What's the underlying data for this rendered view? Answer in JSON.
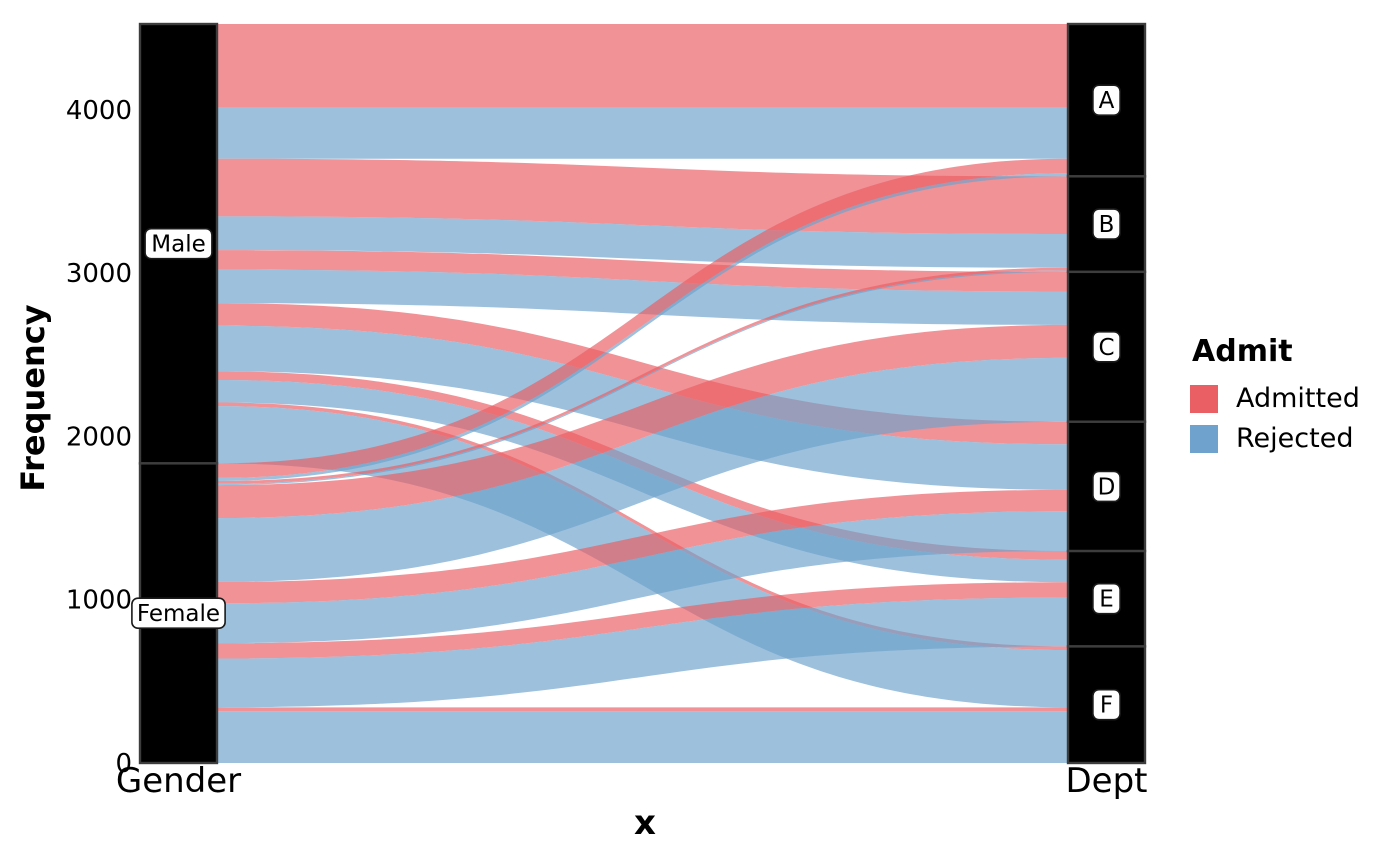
{
  "figure": {
    "kind": "ggplot-alluvial-diagram",
    "background": "#ffffff"
  },
  "axes": {
    "y_title": "Frequency",
    "x_title": "x",
    "x_category_labels": [
      {
        "label": "Gender",
        "axis": "left"
      },
      {
        "label": "Dept",
        "axis": "right"
      }
    ],
    "y_ticks": [
      {
        "label": "0",
        "value": 0
      },
      {
        "label": "1000",
        "value": 1000
      },
      {
        "label": "2000",
        "value": 2000
      },
      {
        "label": "3000",
        "value": 3000
      },
      {
        "label": "4000",
        "value": 4000
      }
    ]
  },
  "legend": {
    "title": "Admit",
    "items": [
      {
        "label": "Admitted",
        "color": "#EA5F64"
      },
      {
        "label": "Rejected",
        "color": "#6FA2CC"
      }
    ]
  },
  "strata_style": {
    "fill": "#000000",
    "border": "#3d3d3d",
    "label_box_fill": "#ffffff",
    "label_box_border": "#1a1a1a",
    "label_text_color": "#000000"
  },
  "chart_data": {
    "type": "alluvial",
    "title": "",
    "xlabel": "x",
    "ylabel": "Frequency",
    "ylim": [
      0,
      4526
    ],
    "grid": false,
    "legend_position": "right",
    "x_axes": [
      "Gender",
      "Dept"
    ],
    "strata": {
      "Gender": [
        "Male",
        "Female"
      ],
      "Dept": [
        "A",
        "B",
        "C",
        "D",
        "E",
        "F"
      ]
    },
    "fill_variable": "Admit",
    "admit_levels": [
      "Admitted",
      "Rejected"
    ],
    "flow_alpha": 0.68,
    "flows": [
      {
        "gender": "Male",
        "dept": "A",
        "admit": "Admitted",
        "freq": 512
      },
      {
        "gender": "Male",
        "dept": "A",
        "admit": "Rejected",
        "freq": 313
      },
      {
        "gender": "Male",
        "dept": "B",
        "admit": "Admitted",
        "freq": 353
      },
      {
        "gender": "Male",
        "dept": "B",
        "admit": "Rejected",
        "freq": 207
      },
      {
        "gender": "Male",
        "dept": "C",
        "admit": "Admitted",
        "freq": 120
      },
      {
        "gender": "Male",
        "dept": "C",
        "admit": "Rejected",
        "freq": 205
      },
      {
        "gender": "Male",
        "dept": "D",
        "admit": "Admitted",
        "freq": 138
      },
      {
        "gender": "Male",
        "dept": "D",
        "admit": "Rejected",
        "freq": 279
      },
      {
        "gender": "Male",
        "dept": "E",
        "admit": "Admitted",
        "freq": 53
      },
      {
        "gender": "Male",
        "dept": "E",
        "admit": "Rejected",
        "freq": 138
      },
      {
        "gender": "Male",
        "dept": "F",
        "admit": "Admitted",
        "freq": 22
      },
      {
        "gender": "Male",
        "dept": "F",
        "admit": "Rejected",
        "freq": 351
      },
      {
        "gender": "Female",
        "dept": "A",
        "admit": "Admitted",
        "freq": 89
      },
      {
        "gender": "Female",
        "dept": "A",
        "admit": "Rejected",
        "freq": 19
      },
      {
        "gender": "Female",
        "dept": "B",
        "admit": "Admitted",
        "freq": 17
      },
      {
        "gender": "Female",
        "dept": "B",
        "admit": "Rejected",
        "freq": 8
      },
      {
        "gender": "Female",
        "dept": "C",
        "admit": "Admitted",
        "freq": 202
      },
      {
        "gender": "Female",
        "dept": "C",
        "admit": "Rejected",
        "freq": 391
      },
      {
        "gender": "Female",
        "dept": "D",
        "admit": "Admitted",
        "freq": 131
      },
      {
        "gender": "Female",
        "dept": "D",
        "admit": "Rejected",
        "freq": 244
      },
      {
        "gender": "Female",
        "dept": "E",
        "admit": "Admitted",
        "freq": 94
      },
      {
        "gender": "Female",
        "dept": "E",
        "admit": "Rejected",
        "freq": 299
      },
      {
        "gender": "Female",
        "dept": "F",
        "admit": "Admitted",
        "freq": 24
      },
      {
        "gender": "Female",
        "dept": "F",
        "admit": "Rejected",
        "freq": 317
      }
    ]
  }
}
